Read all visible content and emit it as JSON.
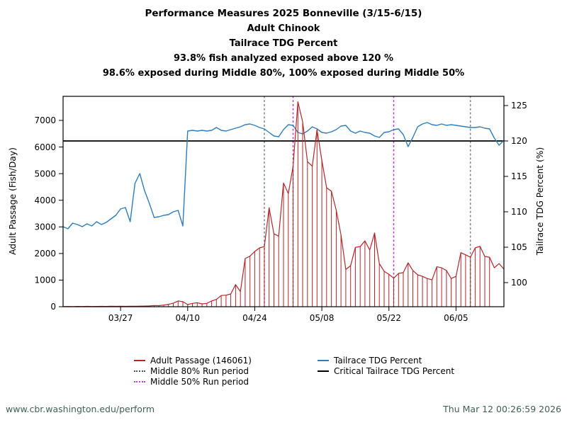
{
  "header": {
    "title_lines": [
      "Performance Measures 2025 Bonneville (3/15-6/15)",
      "Adult Chinook",
      "Tailrace TDG Percent",
      "93.8% fish analyzed exposed above 120 %",
      "98.6% exposed during Middle 80%, 100% exposed during Middle 50%"
    ]
  },
  "chart_data": {
    "type": "line",
    "title": "Performance Measures 2025 Bonneville (3/15-6/15)",
    "x_dates": [
      "03/15",
      "03/16",
      "03/17",
      "03/18",
      "03/19",
      "03/20",
      "03/21",
      "03/22",
      "03/23",
      "03/24",
      "03/25",
      "03/26",
      "03/27",
      "03/28",
      "03/29",
      "03/30",
      "03/31",
      "04/01",
      "04/02",
      "04/03",
      "04/04",
      "04/05",
      "04/06",
      "04/07",
      "04/08",
      "04/09",
      "04/10",
      "04/11",
      "04/12",
      "04/13",
      "04/14",
      "04/15",
      "04/16",
      "04/17",
      "04/18",
      "04/19",
      "04/20",
      "04/21",
      "04/22",
      "04/23",
      "04/24",
      "04/25",
      "04/26",
      "04/27",
      "04/28",
      "04/29",
      "04/30",
      "05/01",
      "05/02",
      "05/03",
      "05/04",
      "05/05",
      "05/06",
      "05/07",
      "05/08",
      "05/09",
      "05/10",
      "05/11",
      "05/12",
      "05/13",
      "05/14",
      "05/15",
      "05/16",
      "05/17",
      "05/18",
      "05/19",
      "05/20",
      "05/21",
      "05/22",
      "05/23",
      "05/24",
      "05/25",
      "05/26",
      "05/27",
      "05/28",
      "05/29",
      "05/30",
      "05/31",
      "06/01",
      "06/02",
      "06/03",
      "06/04",
      "06/05",
      "06/06",
      "06/07",
      "06/08",
      "06/09",
      "06/10",
      "06/11",
      "06/12",
      "06/13",
      "06/14",
      "06/15"
    ],
    "series": [
      {
        "name": "Adult Passage (146061)",
        "axis": "left",
        "style": "impulse-line",
        "color": "#b2262a",
        "values": [
          5,
          8,
          5,
          10,
          8,
          12,
          8,
          10,
          12,
          10,
          15,
          12,
          15,
          12,
          18,
          15,
          20,
          25,
          30,
          45,
          40,
          60,
          90,
          130,
          215,
          190,
          80,
          125,
          150,
          106,
          125,
          215,
          275,
          420,
          435,
          480,
          830,
          570,
          1810,
          1900,
          2075,
          2210,
          2260,
          3720,
          2740,
          2650,
          4650,
          4250,
          5270,
          7700,
          6950,
          5450,
          5280,
          6650,
          5500,
          4470,
          4340,
          3630,
          2700,
          1400,
          1540,
          2230,
          2260,
          2475,
          2130,
          2770,
          1620,
          1330,
          1220,
          1070,
          1250,
          1280,
          1650,
          1360,
          1200,
          1140,
          1060,
          1010,
          1500,
          1460,
          1360,
          1060,
          1140,
          2030,
          1950,
          1860,
          2210,
          2270,
          1890,
          1860,
          1460,
          1620,
          1410
        ]
      },
      {
        "name": "Tailrace TDG Percent",
        "axis": "right",
        "style": "line",
        "color": "#2f7db9",
        "values": [
          107.9,
          107.6,
          108.4,
          108.2,
          107.9,
          108.3,
          108.0,
          108.6,
          108.2,
          108.5,
          109.0,
          109.5,
          110.4,
          110.6,
          108.6,
          114.0,
          115.4,
          113.0,
          111.2,
          109.2,
          109.3,
          109.5,
          109.6,
          110.0,
          110.2,
          108.0,
          121.4,
          121.5,
          121.4,
          121.5,
          121.4,
          121.5,
          121.9,
          121.5,
          121.4,
          121.6,
          121.8,
          122.0,
          122.3,
          122.4,
          122.2,
          121.9,
          121.7,
          121.2,
          120.7,
          120.6,
          121.6,
          122.3,
          122.2,
          121.2,
          121.0,
          121.4,
          122.0,
          121.7,
          121.2,
          121.1,
          121.3,
          121.6,
          122.1,
          122.2,
          121.4,
          121.1,
          121.4,
          121.2,
          121.1,
          120.7,
          120.5,
          121.2,
          121.3,
          121.6,
          121.7,
          120.9,
          119.2,
          120.5,
          122.0,
          122.4,
          122.6,
          122.3,
          122.2,
          122.4,
          122.2,
          122.3,
          122.2,
          122.1,
          122.0,
          121.9,
          121.9,
          122.0,
          121.8,
          121.7,
          120.4,
          119.4,
          120.1
        ]
      }
    ],
    "critical_line": {
      "name": "Critical Tailrace TDG Percent",
      "axis": "right",
      "value": 120,
      "color": "#000000"
    },
    "run_periods": [
      {
        "label": "Middle 80% Run period",
        "dates": [
          "04/26",
          "06/08"
        ],
        "color": "#7d8494"
      },
      {
        "label": "Middle 50% Run period",
        "dates": [
          "05/02",
          "05/23"
        ],
        "color": "#b63fd4"
      }
    ],
    "left_axis": {
      "label": "Adult Passage (Fish/Day)",
      "ticks": [
        0,
        1000,
        2000,
        3000,
        4000,
        5000,
        6000,
        7000
      ],
      "range": [
        0,
        7905
      ]
    },
    "right_axis": {
      "label": "Tailrace TDG Percent (%)",
      "ticks": [
        100,
        105,
        110,
        115,
        120,
        125
      ],
      "range": [
        96.6,
        126.3
      ]
    },
    "x_axis": {
      "tick_labels": [
        "03/27",
        "04/10",
        "04/24",
        "05/08",
        "05/22",
        "06/05"
      ],
      "tick_days": [
        12,
        26,
        40,
        54,
        68,
        82
      ],
      "range_days": [
        0,
        92
      ]
    },
    "grid": false,
    "legend_position": "bottom"
  },
  "legend": {
    "items": [
      {
        "label": "Adult Passage (146061)",
        "marker": "line",
        "color": "#b2262a"
      },
      {
        "label": "Middle 80% Run period",
        "marker": "dots",
        "color": "#49536e"
      },
      {
        "label": "Middle 50% Run period",
        "marker": "dots",
        "color": "#b63fd4"
      },
      {
        "label": "Tailrace TDG Percent",
        "marker": "line",
        "color": "#2f7db9"
      },
      {
        "label": "Critical Tailrace TDG Percent",
        "marker": "line",
        "color": "#000000"
      }
    ]
  },
  "footer": {
    "url": "www.cbr.washington.edu/perform",
    "timestamp": "Thu Mar 12 00:26:59 2026"
  }
}
